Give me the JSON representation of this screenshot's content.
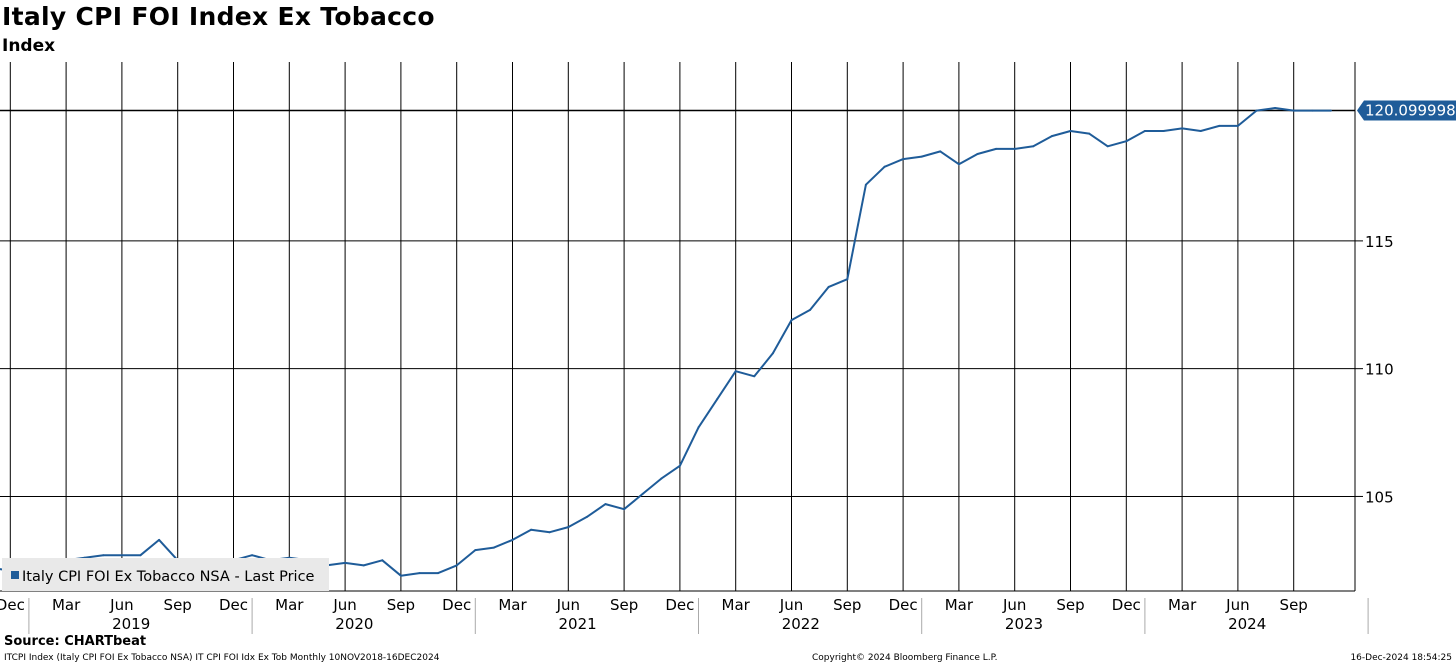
{
  "header": {
    "title": "Italy CPI FOI Index Ex Tobacco",
    "subtitle": "Index"
  },
  "footer": {
    "source": "Source: CHARTbeat",
    "ticker_info": "ITCPI Index (Italy CPI FOI Ex Tobacco NSA) IT CPI FOI Idx Ex Tob  Monthly 10NOV2018-16DEC2024",
    "copyright": "Copyright© 2024 Bloomberg Finance L.P.",
    "timestamp": "16-Dec-2024 18:54:25"
  },
  "chart_data": {
    "type": "line",
    "title": "Italy CPI FOI Index Ex Tobacco",
    "ylabel": "Index",
    "x_range": [
      "2018-11",
      "2025-01"
    ],
    "ylim": [
      101.3,
      122.0
    ],
    "y_ticks": [
      105,
      110,
      115
    ],
    "y_tick_labels": [
      "105",
      "110",
      "115"
    ],
    "grid": true,
    "line_color": "#1f5c99",
    "last_value_label": "120.099998",
    "legend": {
      "label": "Italy CPI FOI Ex Tobacco NSA - Last Price",
      "position": "bottom-left"
    },
    "x_month_labels": [
      "Dec",
      "Mar",
      "Jun",
      "Sep",
      "Dec",
      "Mar",
      "Jun",
      "Sep",
      "Dec",
      "Mar",
      "Jun",
      "Sep",
      "Dec",
      "Mar",
      "Jun",
      "Sep",
      "Dec",
      "Mar",
      "Jun",
      "Sep",
      "Dec",
      "Mar",
      "Jun",
      "Sep"
    ],
    "x_year_labels": [
      "2019",
      "2020",
      "2021",
      "2022",
      "2023",
      "2024"
    ],
    "series": [
      {
        "name": "Italy CPI FOI Ex Tobacco NSA - Last Price",
        "x": [
          "2018-11",
          "2018-12",
          "2019-01",
          "2019-02",
          "2019-03",
          "2019-04",
          "2019-05",
          "2019-06",
          "2019-07",
          "2019-08",
          "2019-09",
          "2019-10",
          "2019-11",
          "2019-12",
          "2020-01",
          "2020-02",
          "2020-03",
          "2020-04",
          "2020-05",
          "2020-06",
          "2020-07",
          "2020-08",
          "2020-09",
          "2020-10",
          "2020-11",
          "2020-12",
          "2021-01",
          "2021-02",
          "2021-03",
          "2021-04",
          "2021-05",
          "2021-06",
          "2021-07",
          "2021-08",
          "2021-09",
          "2021-10",
          "2021-11",
          "2021-12",
          "2022-01",
          "2022-02",
          "2022-03",
          "2022-04",
          "2022-05",
          "2022-06",
          "2022-07",
          "2022-08",
          "2022-09",
          "2022-10",
          "2022-11",
          "2022-12",
          "2023-01",
          "2023-02",
          "2023-03",
          "2023-04",
          "2023-05",
          "2023-06",
          "2023-07",
          "2023-08",
          "2023-09",
          "2023-10",
          "2023-11",
          "2023-12",
          "2024-01",
          "2024-02",
          "2024-03",
          "2024-04",
          "2024-05",
          "2024-06",
          "2024-07",
          "2024-08",
          "2024-09",
          "2024-10",
          "2024-11"
        ],
        "values": [
          102.2,
          102.1,
          102.2,
          102.3,
          102.5,
          102.6,
          102.7,
          102.7,
          102.7,
          103.3,
          102.5,
          102.4,
          102.3,
          102.5,
          102.7,
          102.5,
          102.6,
          102.5,
          102.3,
          102.4,
          102.3,
          102.5,
          101.9,
          102.0,
          102.0,
          102.3,
          102.9,
          103.0,
          103.3,
          103.7,
          103.6,
          103.8,
          104.2,
          104.7,
          104.5,
          105.1,
          105.7,
          106.2,
          107.7,
          108.8,
          109.9,
          109.7,
          110.6,
          111.9,
          112.3,
          113.2,
          113.5,
          117.2,
          117.9,
          118.2,
          118.3,
          118.5,
          118.0,
          118.4,
          118.6,
          118.6,
          118.7,
          119.1,
          119.3,
          119.2,
          118.7,
          118.9,
          119.3,
          119.3,
          119.4,
          119.3,
          119.5,
          119.5,
          120.1,
          120.2,
          120.1,
          120.1,
          120.1
        ]
      }
    ]
  }
}
